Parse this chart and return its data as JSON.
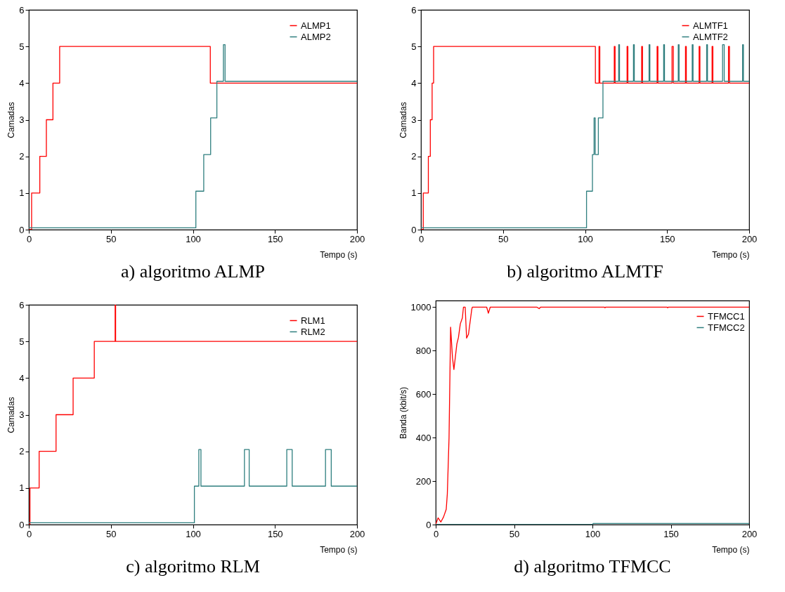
{
  "chart_data": [
    {
      "type": "step",
      "title": "a) algoritmo ALMP",
      "xlabel": "Tempo (s)",
      "ylabel": "Camadas",
      "xlim": [
        0,
        200
      ],
      "xticks": [
        0,
        50,
        100,
        150,
        200
      ],
      "ylim": [
        0,
        6
      ],
      "yticks": [
        0,
        1,
        2,
        3,
        4,
        5,
        6
      ],
      "grid": false,
      "legend": "top right",
      "series": [
        {
          "name": "ALMP1",
          "color": "#ff0000",
          "x": [
            0,
            1.7,
            6.7,
            10.7,
            14.7,
            18.8,
            110.6,
            200
          ],
          "values": [
            0,
            1,
            2,
            3,
            4,
            5,
            4,
            4
          ]
        },
        {
          "name": "ALMP2",
          "color": "#2f7f7f",
          "x": [
            0,
            101.8,
            106.6,
            110.8,
            114.6,
            118.6,
            119.6,
            200
          ],
          "values": [
            0.05,
            1.05,
            2.05,
            3.05,
            4.05,
            5.05,
            4.05,
            4.05
          ]
        }
      ]
    },
    {
      "type": "step",
      "title": "b) algoritmo ALMTF",
      "xlabel": "Tempo (s)",
      "ylabel": "Camadas",
      "xlim": [
        0,
        200
      ],
      "xticks": [
        0,
        50,
        100,
        150,
        200
      ],
      "ylim": [
        0,
        6
      ],
      "yticks": [
        0,
        1,
        2,
        3,
        4,
        5,
        6
      ],
      "grid": false,
      "legend": "top right",
      "series": [
        {
          "name": "ALMTF1",
          "color": "#ff0000",
          "x": [
            0,
            1.4,
            4.5,
            5.7,
            6.8,
            7.7,
            106.3,
            108.5,
            109,
            117.8,
            118.3,
            125.6,
            126.1,
            134.5,
            135,
            143.9,
            144.4,
            153,
            153.8,
            161.2,
            161.7,
            169.5,
            170,
            177.4,
            177.9,
            187.4,
            188,
            200
          ],
          "values": [
            0,
            1,
            2,
            3,
            4,
            5,
            4,
            5,
            4,
            5,
            4,
            5,
            4,
            5,
            4,
            5,
            4,
            5,
            4,
            5,
            4,
            5,
            4,
            5,
            4,
            5,
            4,
            4
          ]
        },
        {
          "name": "ALMTF2",
          "color": "#2f7f7f",
          "x": [
            0,
            100.9,
            104.5,
            105.5,
            106.2,
            108.1,
            110.9,
            120.5,
            121,
            129.5,
            130,
            139,
            139.5,
            147.9,
            148.4,
            156.8,
            157.3,
            165.3,
            165.8,
            174.1,
            174.6,
            183.8,
            184.8,
            196,
            196.5,
            200
          ],
          "values": [
            0.05,
            1.05,
            2.05,
            3.05,
            2.05,
            3.05,
            4.05,
            5.05,
            4.05,
            5.05,
            4.05,
            5.05,
            4.05,
            5.05,
            4.05,
            5.05,
            4.05,
            5.05,
            4.05,
            5.05,
            4.05,
            5.05,
            4.05,
            5.05,
            4.05,
            4.05
          ]
        }
      ]
    },
    {
      "type": "step",
      "title": "c) algoritmo RLM",
      "xlabel": "Tempo (s)",
      "ylabel": "Camadas",
      "xlim": [
        0,
        200
      ],
      "xticks": [
        0,
        50,
        100,
        150,
        200
      ],
      "ylim": [
        0,
        6
      ],
      "yticks": [
        0,
        1,
        2,
        3,
        4,
        5,
        6
      ],
      "grid": false,
      "legend": "top right",
      "series": [
        {
          "name": "RLM1",
          "color": "#ff0000",
          "x": [
            0,
            0.7,
            6.3,
            16.6,
            27,
            39.9,
            52.6,
            52.9,
            200
          ],
          "values": [
            0,
            1,
            2,
            3,
            4,
            5,
            6,
            5,
            5
          ]
        },
        {
          "name": "RLM2",
          "color": "#2f7f7f",
          "x": [
            0,
            100.9,
            103.6,
            104.9,
            131.4,
            134.3,
            157.2,
            160.5,
            180.8,
            184.3,
            200
          ],
          "values": [
            0.05,
            1.05,
            2.05,
            1.05,
            2.05,
            1.05,
            2.05,
            1.05,
            2.05,
            1.05,
            1.05
          ]
        }
      ]
    },
    {
      "type": "line",
      "title": "d) algoritmo TFMCC",
      "xlabel": "Tempo (s)",
      "ylabel": "Banda (kbit/s)",
      "xlim": [
        0,
        200
      ],
      "xticks": [
        0,
        50,
        100,
        150,
        200
      ],
      "ylim": [
        0,
        1030
      ],
      "yticks": [
        0,
        200,
        400,
        600,
        800,
        1000
      ],
      "grid": false,
      "legend": "top right",
      "series": [
        {
          "name": "TFMCC1",
          "color": "#ff0000",
          "x": [
            0,
            1.5,
            3.3,
            5,
            6.7,
            7.4,
            8.5,
            9.5,
            10.7,
            11.6,
            13.5,
            14.5,
            15.7,
            17,
            17.7,
            18.8,
            19.7,
            20.9,
            23,
            23.4,
            32.5,
            33.6,
            34.8,
            64.5,
            66,
            67,
            107.5,
            108,
            108.5,
            147.5,
            148,
            148.5,
            200
          ],
          "values": [
            0,
            31,
            12,
            35,
            70,
            141,
            400,
            908,
            767,
            713,
            831,
            860,
            923,
            950,
            1000,
            1000,
            857,
            875,
            990,
            1000,
            1000,
            972,
            1000,
            1000,
            993,
            1000,
            1000,
            997,
            1000,
            1000,
            997,
            1000,
            1000
          ]
        },
        {
          "name": "TFMCC2",
          "color": "#2f7f7f",
          "x": [
            0,
            100,
            100.5,
            200
          ],
          "values": [
            0,
            0,
            5,
            5
          ]
        }
      ]
    }
  ]
}
